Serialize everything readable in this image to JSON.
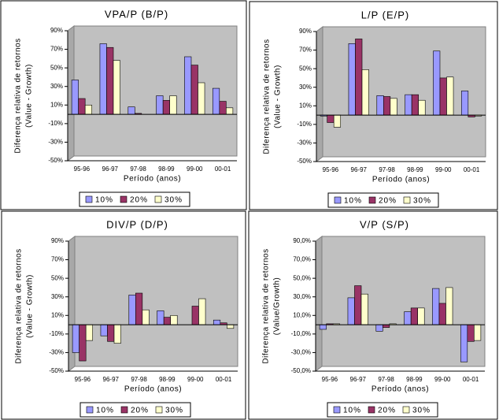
{
  "chart_data": [
    {
      "type": "bar",
      "title": "VPA/P (B/P)",
      "ylabel": [
        "Diferença relativa de retornos",
        "(Value - Growth)"
      ],
      "xlabel": "Período (anos)",
      "categories": [
        "95-96",
        "96-97",
        "97-98",
        "98-99",
        "99-00",
        "00-01"
      ],
      "series": [
        {
          "name": "10%",
          "color": "#9999ff",
          "values": [
            37,
            76,
            8,
            20,
            62,
            28
          ]
        },
        {
          "name": "20%",
          "color": "#993366",
          "values": [
            17,
            72,
            1,
            15,
            53,
            14
          ]
        },
        {
          "name": "30%",
          "color": "#ffffcc",
          "values": [
            10,
            58,
            0,
            20,
            34,
            7
          ]
        }
      ],
      "ylim": [
        -50,
        90
      ],
      "yticks": [
        {
          "value": -50,
          "label": "-50%"
        },
        {
          "value": -30,
          "label": "-30%"
        },
        {
          "value": -10,
          "label": "-10%"
        },
        {
          "value": 10,
          "label": "10%"
        },
        {
          "value": 30,
          "label": "30%"
        },
        {
          "value": 50,
          "label": "50%"
        },
        {
          "value": 70,
          "label": "70%"
        },
        {
          "value": 90,
          "label": "90%"
        }
      ]
    },
    {
      "type": "bar",
      "title": "L/P (E/P)",
      "ylabel": [
        "Diferença relativa de retornos",
        "(Value - Growth)"
      ],
      "xlabel": "Período (anos)",
      "categories": [
        "95-96",
        "96-97",
        "97-98",
        "98-99",
        "99-00",
        "00-01"
      ],
      "series": [
        {
          "name": "10%",
          "color": "#9999ff",
          "values": [
            -1,
            77,
            21,
            22,
            69,
            26
          ]
        },
        {
          "name": "20%",
          "color": "#993366",
          "values": [
            -8,
            82,
            20,
            22,
            40,
            -2
          ]
        },
        {
          "name": "30%",
          "color": "#ffffcc",
          "values": [
            -13,
            49,
            18,
            16,
            41,
            -1
          ]
        }
      ],
      "ylim": [
        -50,
        90
      ],
      "yticks": [
        {
          "value": -50,
          "label": "-50%"
        },
        {
          "value": -30,
          "label": "-30%"
        },
        {
          "value": -10,
          "label": "-10%"
        },
        {
          "value": 10,
          "label": "10%"
        },
        {
          "value": 30,
          "label": "30%"
        },
        {
          "value": 50,
          "label": "50%"
        },
        {
          "value": 70,
          "label": "70%"
        },
        {
          "value": 90,
          "label": "90%"
        }
      ]
    },
    {
      "type": "bar",
      "title": "DIV/P (D/P)",
      "ylabel": [
        "Diferença relativa de retornos",
        "(Value - Growth)"
      ],
      "xlabel": "Período (anos)",
      "categories": [
        "95-96",
        "96-97",
        "97-98",
        "98-99",
        "99-00",
        "00-01"
      ],
      "series": [
        {
          "name": "10%",
          "color": "#9999ff",
          "values": [
            -30,
            -12,
            32,
            15,
            0,
            5
          ]
        },
        {
          "name": "20%",
          "color": "#993366",
          "values": [
            -39,
            -18,
            34,
            8,
            20,
            2
          ]
        },
        {
          "name": "30%",
          "color": "#ffffcc",
          "values": [
            -17,
            -20,
            16,
            10,
            28,
            -4
          ]
        }
      ],
      "ylim": [
        -50,
        90
      ],
      "yticks": [
        {
          "value": -50,
          "label": "-50%"
        },
        {
          "value": -30,
          "label": "-30%"
        },
        {
          "value": -10,
          "label": "-10%"
        },
        {
          "value": 10,
          "label": "10%"
        },
        {
          "value": 30,
          "label": "30%"
        },
        {
          "value": 50,
          "label": "50%"
        },
        {
          "value": 70,
          "label": "70%"
        },
        {
          "value": 90,
          "label": "90%"
        }
      ]
    },
    {
      "type": "bar",
      "title": "V/P (S/P)",
      "ylabel": [
        "Diferença relativa de retornos",
        "(Value/Growth)"
      ],
      "xlabel": "Período (anos)",
      "categories": [
        "95-96",
        "96-97",
        "97-98",
        "98-99",
        "99-00",
        "00-01"
      ],
      "series": [
        {
          "name": "10%",
          "color": "#9999ff",
          "values": [
            -5,
            29,
            -7,
            14,
            39,
            -40
          ]
        },
        {
          "name": "20%",
          "color": "#993366",
          "values": [
            1,
            42,
            -3,
            18,
            23,
            -18
          ]
        },
        {
          "name": "30%",
          "color": "#ffffcc",
          "values": [
            1,
            33,
            1,
            18,
            40,
            -17
          ]
        }
      ],
      "ylim": [
        -50,
        90
      ],
      "yticks": [
        {
          "value": -50,
          "label": "-50,0%"
        },
        {
          "value": -30,
          "label": "-30,0%"
        },
        {
          "value": -10,
          "label": "-10,0%"
        },
        {
          "value": 10,
          "label": "10,0%"
        },
        {
          "value": 30,
          "label": "30,0%"
        },
        {
          "value": 50,
          "label": "50,0%"
        },
        {
          "value": 70,
          "label": "70,0%"
        },
        {
          "value": 90,
          "label": "90,0%"
        }
      ]
    }
  ]
}
